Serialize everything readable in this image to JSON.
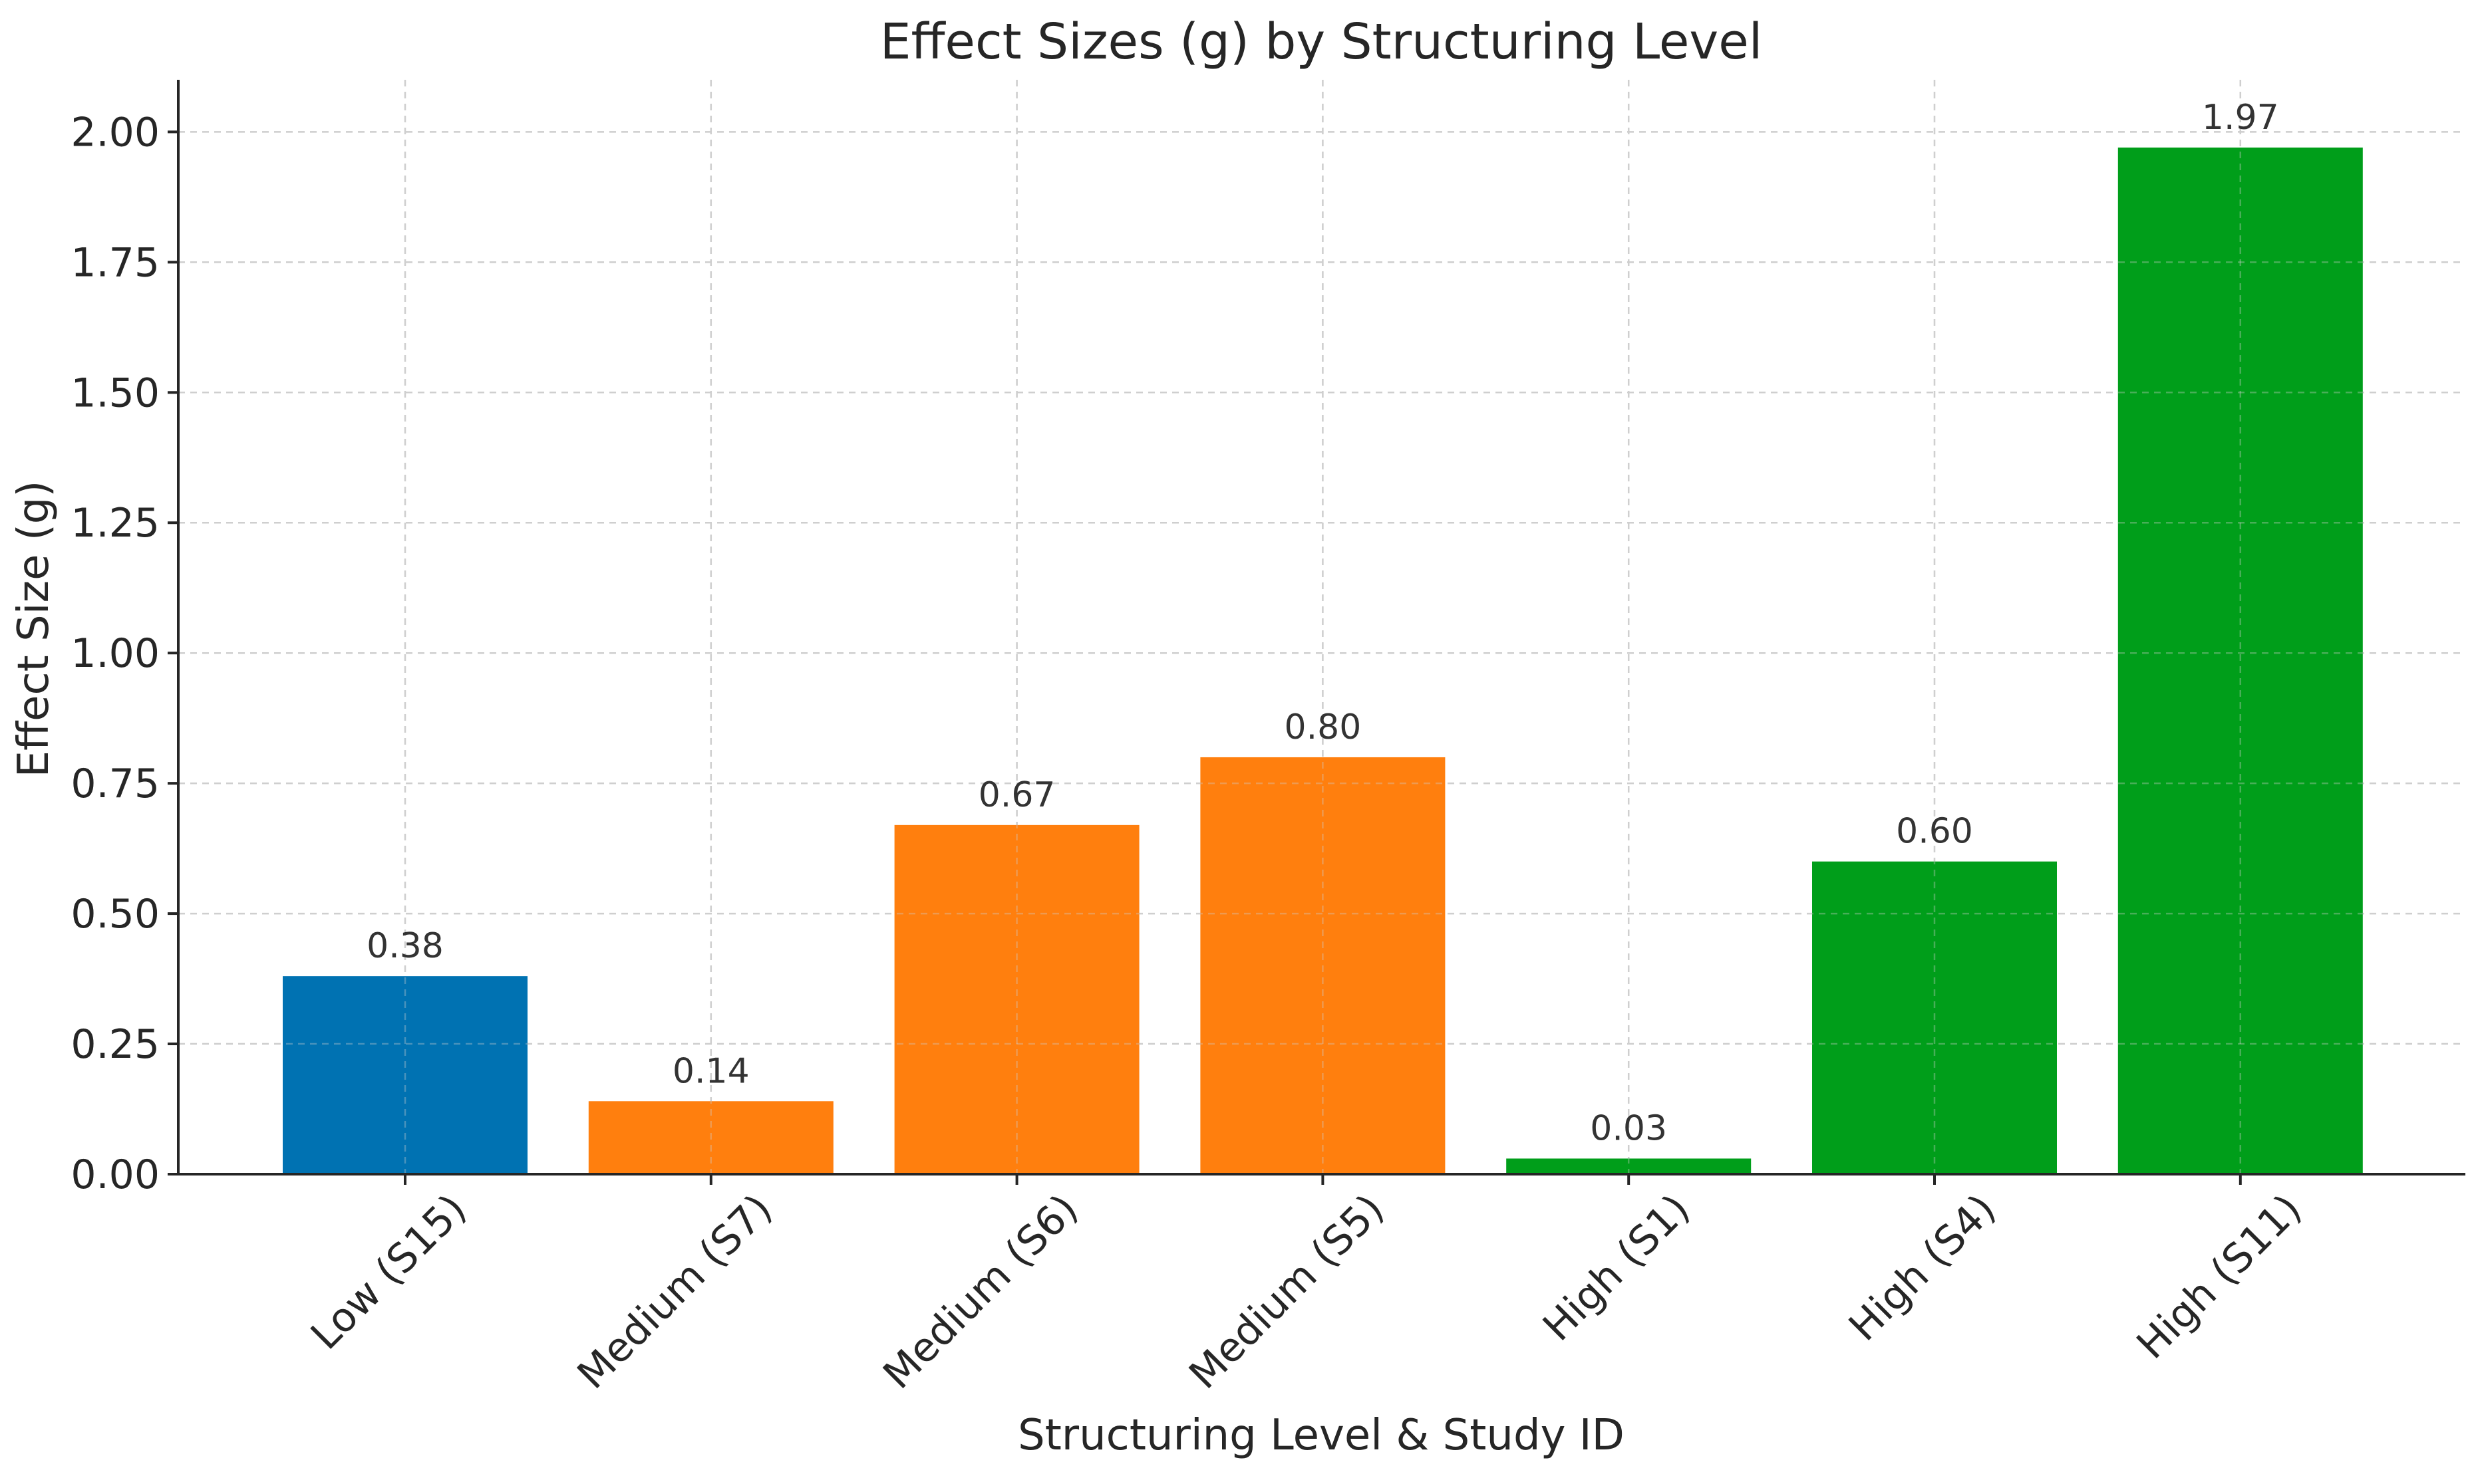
{
  "chart_data": {
    "type": "bar",
    "title": "Effect Sizes (g) by Structuring Level",
    "xlabel": "Structuring Level & Study ID",
    "ylabel": "Effect Size (g)",
    "ylim": [
      0,
      2.1
    ],
    "yticks": [
      0.0,
      0.25,
      0.5,
      0.75,
      1.0,
      1.25,
      1.5,
      1.75,
      2.0
    ],
    "ytick_labels": [
      "0.00",
      "0.25",
      "0.50",
      "0.75",
      "1.00",
      "1.25",
      "1.50",
      "1.75",
      "2.00"
    ],
    "grid": true,
    "categories": [
      "Low (S15)",
      "Medium (S7)",
      "Medium (S6)",
      "Medium (S5)",
      "High (S1)",
      "High (S4)",
      "High (S11)"
    ],
    "values": [
      0.38,
      0.14,
      0.67,
      0.8,
      0.03,
      0.6,
      1.97
    ],
    "value_labels": [
      "0.38",
      "0.14",
      "0.67",
      "0.80",
      "0.03",
      "0.60",
      "1.97"
    ],
    "bar_colors": [
      "#0072B2",
      "#FF7F0E",
      "#FF7F0E",
      "#FF7F0E",
      "#009E1A",
      "#009E1A",
      "#009E1A"
    ]
  }
}
